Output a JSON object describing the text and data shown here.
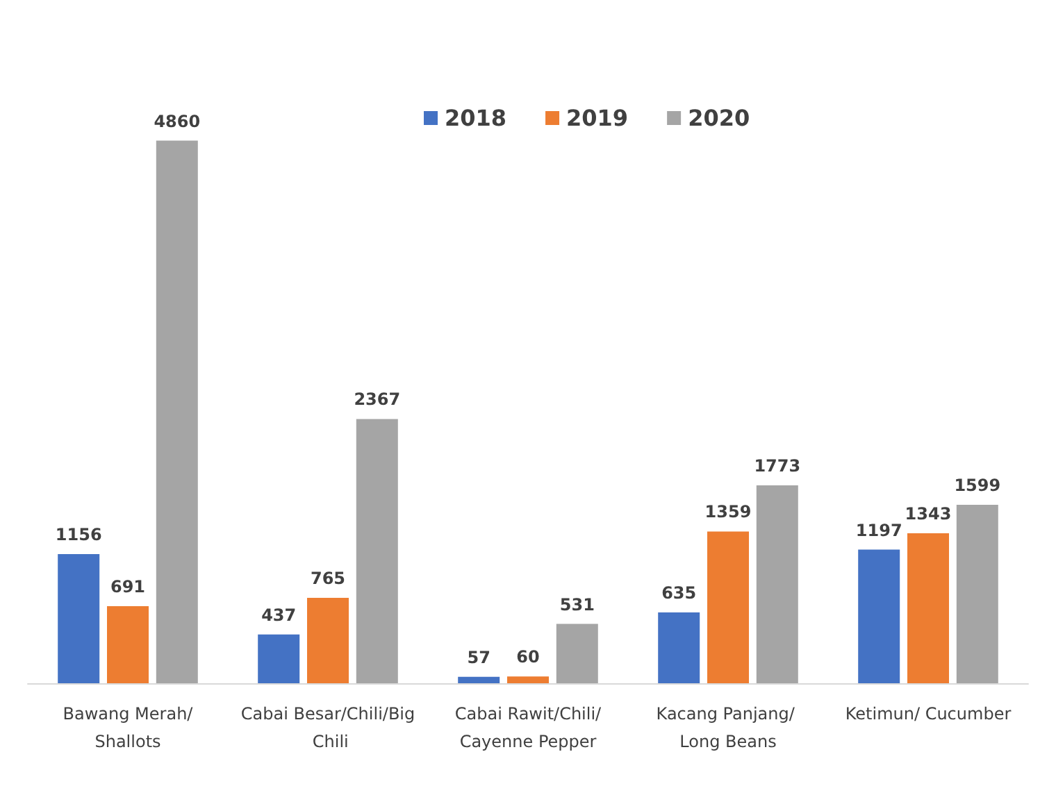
{
  "chart_data": {
    "type": "bar",
    "categories": [
      "Bawang Merah/Shallots",
      "Cabai Besar/Chili/Big Chili",
      "Cabai Rawit/Chili/Cayenne Pepper",
      "Kacang Panjang/ Long Beans",
      "Ketimun/ Cucumber"
    ],
    "series": [
      {
        "name": "2018",
        "color": "#4472c4",
        "values": [
          1156,
          437,
          57,
          635,
          1197
        ]
      },
      {
        "name": "2019",
        "color": "#ed7d31",
        "values": [
          691,
          765,
          60,
          1359,
          1343
        ]
      },
      {
        "name": "2020",
        "color": "#a5a5a5",
        "values": [
          4860,
          2367,
          531,
          1773,
          1599
        ]
      }
    ],
    "data_labels": true,
    "legend": "top"
  }
}
